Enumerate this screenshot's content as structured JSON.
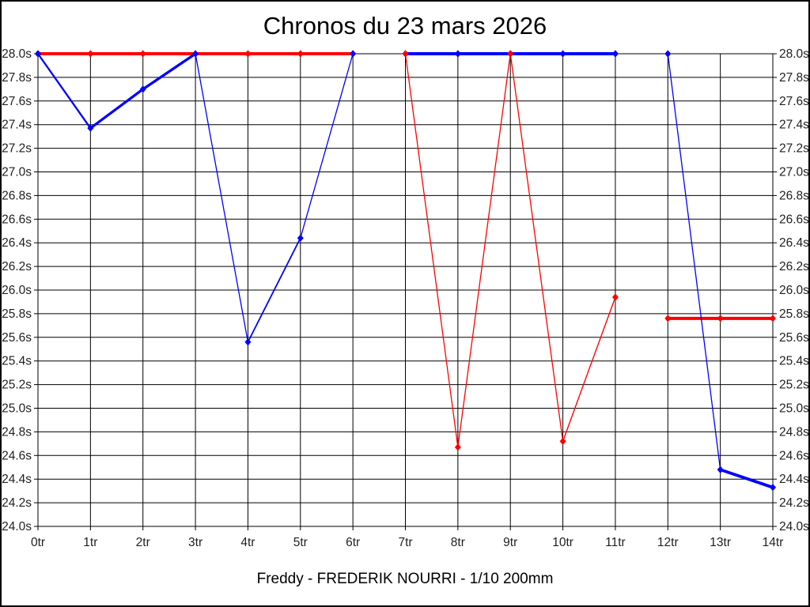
{
  "page": {
    "background_color": "#ffffff",
    "frame_color": "#000000",
    "grid_color": "#000000"
  },
  "chart_data": {
    "type": "line",
    "title": "Chronos du 23 mars 2026",
    "footer": "Freddy - FREDERIK NOURRI - 1/10 200mm",
    "xlabel": "",
    "ylabel": "",
    "x_unit": "tr",
    "y_unit": "s",
    "grid": true,
    "legend_position": "none",
    "marker": "diamond",
    "x_tick_labels": [
      "0tr",
      "1tr",
      "2tr",
      "3tr",
      "4tr",
      "5tr",
      "6tr",
      "7tr",
      "8tr",
      "9tr",
      "10tr",
      "11tr",
      "12tr",
      "13tr",
      "14tr"
    ],
    "y_tick_labels": [
      "28.0s",
      "27.8s",
      "27.6s",
      "27.4s",
      "27.2s",
      "27.0s",
      "26.8s",
      "26.6s",
      "26.4s",
      "26.2s",
      "26.0s",
      "25.8s",
      "25.6s",
      "25.4s",
      "25.2s",
      "25.0s",
      "24.8s",
      "24.6s",
      "24.4s",
      "24.2s",
      "24.0s"
    ],
    "y_ticks_both_sides": true,
    "ylim": [
      24.0,
      28.0
    ],
    "y_step": 0.2,
    "xlim": [
      0,
      14
    ],
    "series": [
      {
        "name": "red-series",
        "color": "#ff0000",
        "segments": [
          {
            "x": [
              0,
              1,
              2,
              3,
              4,
              5,
              6
            ],
            "y": [
              28.0,
              28.0,
              28.0,
              28.0,
              28.0,
              28.0,
              28.0
            ]
          },
          {
            "x": [
              7,
              8,
              9,
              10,
              11
            ],
            "y": [
              28.0,
              24.67,
              28.0,
              24.72,
              25.94
            ],
            "markers_front": true
          },
          {
            "x": [
              12,
              13,
              14
            ],
            "y": [
              25.76,
              25.76,
              25.76
            ]
          }
        ]
      },
      {
        "name": "blue-series",
        "color": "#0000ff",
        "segments": [
          {
            "x": [
              0,
              1,
              2,
              3,
              4,
              5,
              6
            ],
            "y": [
              28.0,
              27.37,
              27.7,
              28.0,
              25.56,
              26.44,
              28.0
            ]
          },
          {
            "x": [
              7,
              8,
              9,
              10,
              11
            ],
            "y": [
              28.0,
              28.0,
              28.0,
              28.0,
              28.0
            ]
          },
          {
            "x": [
              12,
              13,
              14
            ],
            "y": [
              28.0,
              24.48,
              24.33
            ]
          }
        ]
      }
    ]
  }
}
